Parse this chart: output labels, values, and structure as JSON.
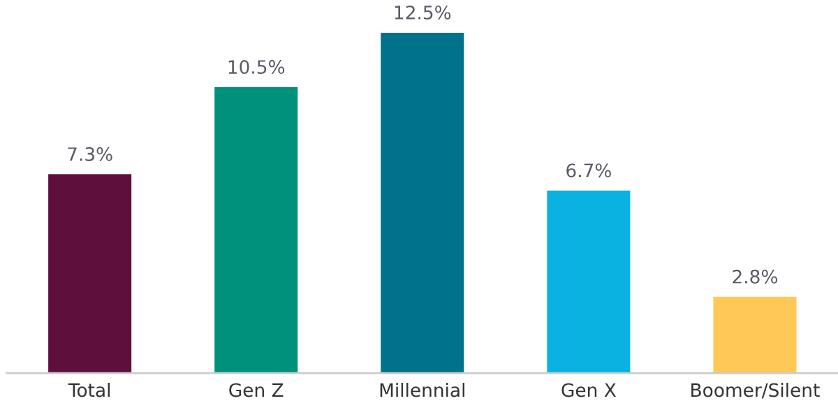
{
  "chart_data": {
    "type": "bar",
    "categories": [
      "Total",
      "Gen Z",
      "Millennial",
      "Gen X",
      "Boomer/Silent"
    ],
    "values": [
      7.3,
      10.5,
      12.5,
      6.7,
      2.8
    ],
    "value_labels": [
      "7.3%",
      "10.5%",
      "12.5%",
      "6.7%",
      "2.8%"
    ],
    "colors": [
      "#5e0f3c",
      "#00917d",
      "#00728c",
      "#09b2e0",
      "#ffc857"
    ],
    "grid": false,
    "legend": false,
    "tick_labels": "x"
  }
}
